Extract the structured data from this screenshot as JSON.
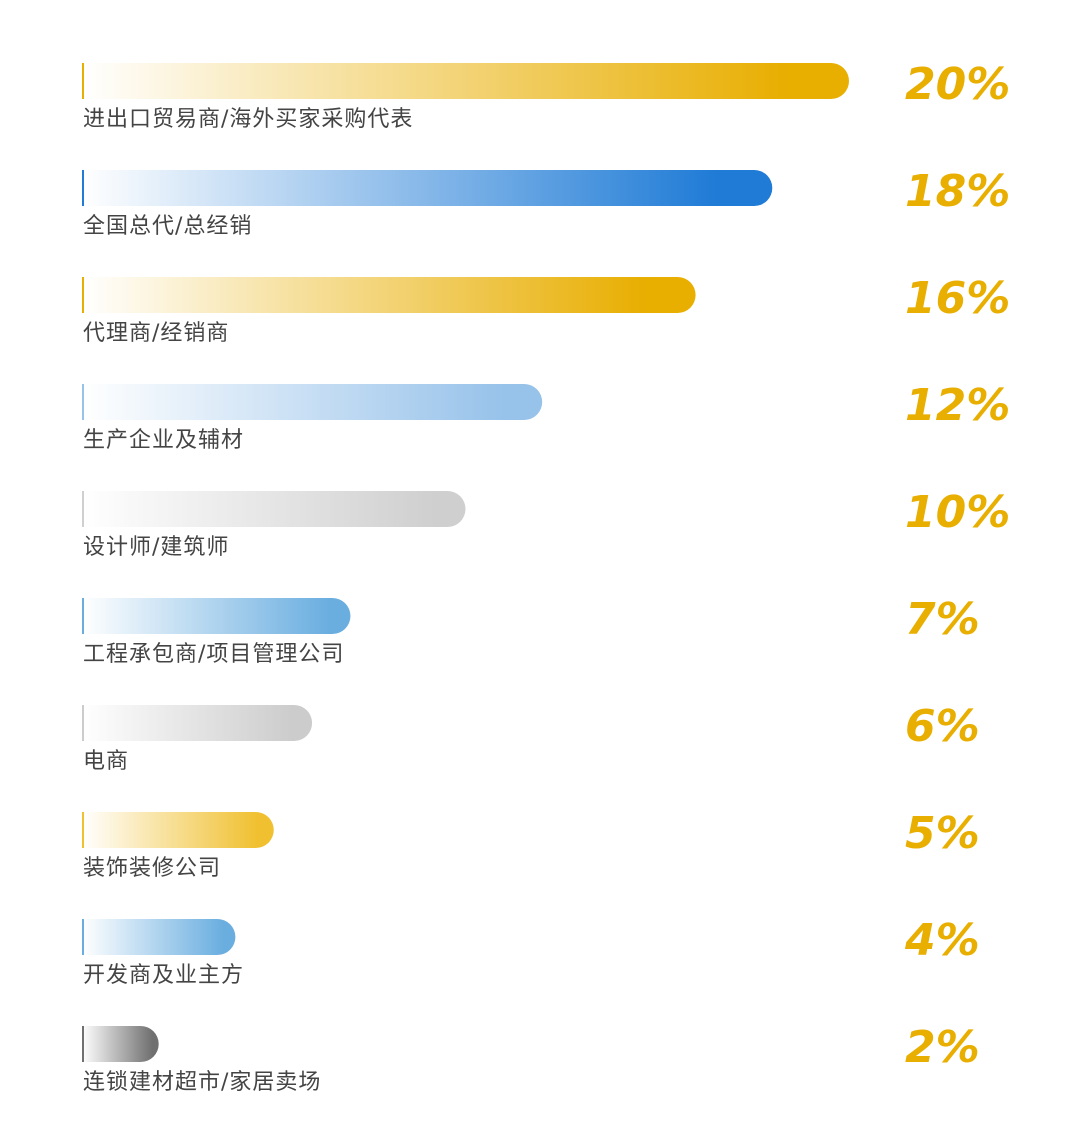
{
  "chart_data": {
    "type": "bar",
    "orientation": "horizontal",
    "categories": [
      "进出口贸易商/海外买家采购代表",
      "全国总代/总经销",
      "代理商/经销商",
      "生产企业及辅材",
      "设计师/建筑师",
      "工程承包商/项目管理公司",
      "电商",
      "装饰装修公司",
      "开发商及业主方",
      "连锁建材超市/家居卖场"
    ],
    "values": [
      20,
      18,
      16,
      12,
      10,
      7,
      6,
      5,
      4,
      2
    ],
    "value_labels": [
      "20%",
      "18%",
      "16%",
      "12%",
      "10%",
      "7%",
      "6%",
      "5%",
      "4%",
      "2%"
    ],
    "unit": "%",
    "bar_colors": [
      "#e8ae00",
      "#1f7bd6",
      "#e8ae00",
      "#97c2ea",
      "#cfcfcf",
      "#6aaee0",
      "#cccccc",
      "#f0c030",
      "#6aaee0",
      "#707070"
    ],
    "value_label_color": "#e8ae00",
    "grid": false,
    "legend": "none"
  }
}
